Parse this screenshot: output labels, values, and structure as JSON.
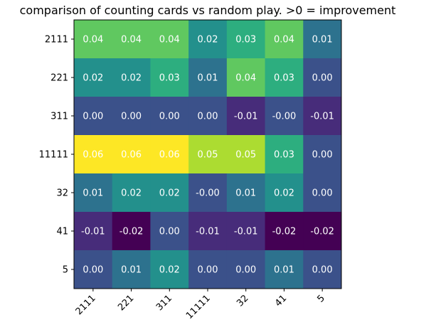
{
  "chart_data": {
    "type": "heatmap",
    "title": "comparison of counting cards vs random play. >0 = improvement",
    "xlabel": "",
    "ylabel": "",
    "x_categories": [
      "2111",
      "221",
      "311",
      "11111",
      "32",
      "41",
      "5"
    ],
    "y_categories": [
      "2111",
      "221",
      "311",
      "11111",
      "32",
      "41",
      "5"
    ],
    "values": [
      [
        0.04,
        0.04,
        0.04,
        0.02,
        0.03,
        0.04,
        0.01
      ],
      [
        0.02,
        0.02,
        0.03,
        0.01,
        0.04,
        0.03,
        0.0
      ],
      [
        0.0,
        0.0,
        0.0,
        0.0,
        -0.01,
        -0.0,
        -0.01
      ],
      [
        0.06,
        0.06,
        0.06,
        0.05,
        0.05,
        0.03,
        0.0
      ],
      [
        0.01,
        0.02,
        0.02,
        -0.0,
        0.01,
        0.02,
        0.0
      ],
      [
        -0.01,
        -0.02,
        0.0,
        -0.01,
        -0.01,
        -0.02,
        -0.02
      ],
      [
        0.0,
        0.01,
        0.02,
        0.0,
        0.0,
        0.01,
        0.0
      ]
    ],
    "labels": [
      [
        "0.04",
        "0.04",
        "0.04",
        "0.02",
        "0.03",
        "0.04",
        "0.01"
      ],
      [
        "0.02",
        "0.02",
        "0.03",
        "0.01",
        "0.04",
        "0.03",
        "0.00"
      ],
      [
        "0.00",
        "0.00",
        "0.00",
        "0.00",
        "-0.01",
        "-0.00",
        "-0.01"
      ],
      [
        "0.06",
        "0.06",
        "0.06",
        "0.05",
        "0.05",
        "0.03",
        "0.00"
      ],
      [
        "0.01",
        "0.02",
        "0.02",
        "-0.00",
        "0.01",
        "0.02",
        "0.00"
      ],
      [
        "-0.01",
        "-0.02",
        "0.00",
        "-0.01",
        "-0.01",
        "-0.02",
        "-0.02"
      ],
      [
        "0.00",
        "0.01",
        "0.02",
        "0.00",
        "0.00",
        "0.01",
        "0.00"
      ]
    ],
    "colormap": "viridis",
    "value_range": [
      -0.02,
      0.06
    ],
    "text_color": "#ffffff",
    "grid": false,
    "legend": "none"
  }
}
